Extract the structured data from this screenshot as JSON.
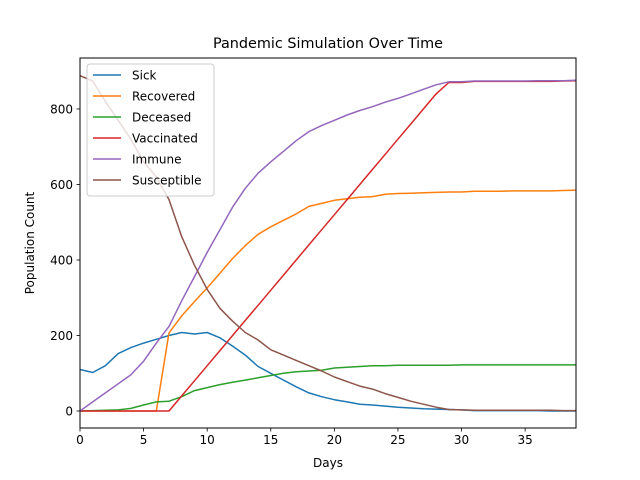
{
  "chart_data": {
    "type": "line",
    "title": "Pandemic Simulation Over Time",
    "xlabel": "Days",
    "ylabel": "Population Count",
    "xlim": [
      0,
      39
    ],
    "ylim": [
      -45,
      935
    ],
    "xticks": [
      0,
      5,
      10,
      15,
      20,
      25,
      30,
      35
    ],
    "yticks": [
      0,
      200,
      400,
      600,
      800
    ],
    "grid": false,
    "legend_position": "upper-left",
    "x": [
      0,
      1,
      2,
      3,
      4,
      5,
      6,
      7,
      8,
      9,
      10,
      11,
      12,
      13,
      14,
      15,
      16,
      17,
      18,
      19,
      20,
      21,
      22,
      23,
      24,
      25,
      26,
      27,
      28,
      29,
      30,
      31,
      32,
      33,
      34,
      35,
      36,
      37,
      38,
      39
    ],
    "series": [
      {
        "name": "Sick",
        "color": "#1f77b4",
        "values": [
          110,
          102,
          120,
          152,
          168,
          180,
          190,
          200,
          208,
          204,
          208,
          194,
          172,
          148,
          118,
          100,
          82,
          64,
          48,
          38,
          30,
          24,
          18,
          16,
          13,
          10,
          8,
          6,
          5,
          4,
          3,
          1,
          1,
          1,
          1,
          1,
          1,
          0,
          0,
          0
        ]
      },
      {
        "name": "Recovered",
        "color": "#ff7f0e",
        "values": [
          0,
          0,
          0,
          0,
          0,
          0,
          0,
          207,
          252,
          290,
          326,
          365,
          404,
          438,
          468,
          488,
          505,
          522,
          542,
          550,
          558,
          562,
          566,
          568,
          574,
          576,
          577,
          578,
          579,
          580,
          580,
          582,
          582,
          582,
          583,
          583,
          583,
          583,
          584,
          585
        ]
      },
      {
        "name": "Deceased",
        "color": "#2ca02c",
        "values": [
          0,
          1,
          2,
          3,
          7,
          16,
          24,
          26,
          38,
          54,
          62,
          70,
          76,
          82,
          88,
          94,
          100,
          104,
          106,
          108,
          114,
          116,
          118,
          120,
          120,
          121,
          121,
          121,
          121,
          121,
          122,
          122,
          122,
          122,
          122,
          122,
          122,
          122,
          122,
          122
        ]
      },
      {
        "name": "Vaccinated",
        "color": "#d62728",
        "values": [
          0,
          0,
          0,
          0,
          0,
          0,
          0,
          0,
          40,
          80,
          120,
          160,
          200,
          240,
          280,
          320,
          360,
          400,
          440,
          480,
          520,
          560,
          600,
          640,
          680,
          720,
          760,
          800,
          840,
          870,
          870,
          873,
          873,
          873,
          873,
          873,
          873,
          873,
          874,
          875
        ]
      },
      {
        "name": "Immune",
        "color": "#9467bd",
        "values": [
          0,
          24,
          48,
          72,
          96,
          132,
          180,
          224,
          292,
          356,
          420,
          480,
          540,
          590,
          630,
          660,
          688,
          716,
          740,
          756,
          770,
          784,
          796,
          806,
          818,
          828,
          840,
          852,
          864,
          872,
          872,
          874,
          874,
          874,
          874,
          874,
          875,
          875,
          875,
          876
        ]
      },
      {
        "name": "Susceptible",
        "color": "#8c564b",
        "values": [
          888,
          874,
          820,
          770,
          720,
          660,
          620,
          560,
          462,
          386,
          322,
          272,
          238,
          208,
          188,
          162,
          148,
          134,
          120,
          106,
          90,
          78,
          66,
          58,
          46,
          36,
          26,
          18,
          10,
          4,
          3,
          2,
          2,
          2,
          2,
          2,
          2,
          2,
          1,
          1
        ]
      }
    ]
  }
}
